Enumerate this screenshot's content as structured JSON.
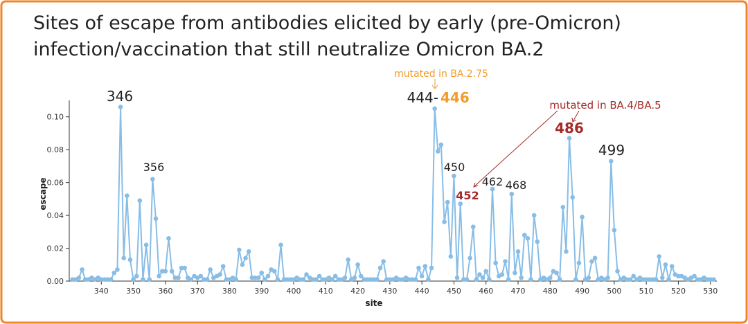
{
  "chart_data": {
    "type": "line",
    "title": [
      "Sites of escape from antibodies elicited by early (pre-Omicron)",
      "infection/vaccination that still neutralize Omicron BA.2"
    ],
    "x_label": "site",
    "y_label": "escape",
    "x": [
      331,
      332,
      333,
      334,
      335,
      336,
      337,
      338,
      339,
      340,
      341,
      342,
      343,
      344,
      345,
      346,
      347,
      348,
      349,
      350,
      351,
      352,
      353,
      354,
      355,
      356,
      357,
      358,
      359,
      360,
      361,
      362,
      363,
      364,
      365,
      366,
      367,
      368,
      369,
      370,
      371,
      372,
      373,
      374,
      375,
      376,
      377,
      378,
      379,
      380,
      381,
      382,
      383,
      384,
      385,
      386,
      387,
      388,
      389,
      390,
      391,
      392,
      393,
      394,
      395,
      396,
      397,
      398,
      399,
      400,
      401,
      402,
      403,
      404,
      405,
      406,
      407,
      408,
      409,
      410,
      411,
      412,
      413,
      414,
      415,
      416,
      417,
      418,
      419,
      420,
      421,
      422,
      423,
      424,
      425,
      426,
      427,
      428,
      429,
      430,
      431,
      432,
      433,
      434,
      435,
      436,
      437,
      438,
      439,
      440,
      441,
      442,
      443,
      444,
      445,
      446,
      447,
      448,
      449,
      450,
      451,
      452,
      453,
      454,
      455,
      456,
      457,
      458,
      459,
      460,
      461,
      462,
      463,
      464,
      465,
      466,
      467,
      468,
      469,
      470,
      471,
      472,
      473,
      474,
      475,
      476,
      477,
      478,
      479,
      480,
      481,
      482,
      483,
      484,
      485,
      486,
      487,
      488,
      489,
      490,
      491,
      492,
      493,
      494,
      495,
      496,
      497,
      498,
      499,
      500,
      501,
      502,
      503,
      504,
      505,
      506,
      507,
      508,
      509,
      510,
      511,
      512,
      513,
      514,
      515,
      516,
      517,
      518,
      519,
      520,
      521,
      522,
      523,
      524,
      525,
      526,
      527,
      528,
      529,
      530,
      531
    ],
    "series": [
      {
        "name": "escape",
        "color": "#88bde6",
        "values": [
          0.001,
          0.001,
          0.002,
          0.007,
          0.001,
          0.001,
          0.002,
          0.001,
          0.002,
          0.001,
          0.001,
          0.001,
          0.001,
          0.005,
          0.007,
          0.106,
          0.014,
          0.052,
          0.013,
          0.001,
          0.003,
          0.049,
          0.001,
          0.022,
          0.001,
          0.062,
          0.038,
          0.003,
          0.006,
          0.006,
          0.026,
          0.006,
          0.002,
          0.002,
          0.008,
          0.008,
          0.002,
          0.001,
          0.003,
          0.002,
          0.003,
          0.001,
          0.001,
          0.007,
          0.002,
          0.003,
          0.004,
          0.009,
          0.001,
          0.001,
          0.002,
          0.001,
          0.019,
          0.01,
          0.014,
          0.018,
          0.002,
          0.002,
          0.002,
          0.005,
          0.001,
          0.003,
          0.007,
          0.006,
          0.001,
          0.022,
          0.001,
          0.001,
          0.001,
          0.001,
          0.002,
          0.001,
          0.001,
          0.004,
          0.002,
          0.001,
          0.001,
          0.003,
          0.001,
          0.001,
          0.002,
          0.001,
          0.003,
          0.001,
          0.001,
          0.002,
          0.013,
          0.001,
          0.002,
          0.01,
          0.003,
          0.001,
          0.001,
          0.001,
          0.001,
          0.001,
          0.008,
          0.012,
          0.001,
          0.001,
          0.001,
          0.002,
          0.001,
          0.001,
          0.002,
          0.001,
          0.001,
          0.001,
          0.008,
          0.003,
          0.009,
          0.001,
          0.008,
          0.105,
          0.079,
          0.083,
          0.036,
          0.048,
          0.015,
          0.064,
          0.002,
          0.047,
          0.001,
          0.001,
          0.014,
          0.033,
          0.001,
          0.004,
          0.002,
          0.006,
          0.001,
          0.056,
          0.011,
          0.003,
          0.004,
          0.012,
          0.001,
          0.053,
          0.005,
          0.018,
          0.002,
          0.028,
          0.026,
          0.001,
          0.04,
          0.024,
          0.001,
          0.002,
          0.001,
          0.002,
          0.006,
          0.005,
          0.001,
          0.045,
          0.018,
          0.087,
          0.051,
          0.001,
          0.011,
          0.039,
          0.001,
          0.002,
          0.012,
          0.014,
          0.001,
          0.002,
          0.001,
          0.002,
          0.073,
          0.031,
          0.006,
          0.001,
          0.002,
          0.001,
          0.001,
          0.003,
          0.001,
          0.002,
          0.001,
          0.001,
          0.001,
          0.001,
          0.001,
          0.015,
          0.002,
          0.01,
          0.001,
          0.009,
          0.004,
          0.003,
          0.003,
          0.002,
          0.001,
          0.002,
          0.003,
          0.001,
          0.001,
          0.002,
          0.001,
          0.001,
          0.001
        ]
      }
    ],
    "xlim": [
      330,
      532
    ],
    "ylim": [
      0,
      0.11
    ],
    "xticks": [
      340,
      350,
      360,
      370,
      380,
      390,
      400,
      410,
      420,
      430,
      440,
      450,
      460,
      470,
      480,
      490,
      500,
      510,
      520,
      530
    ],
    "yticks": [
      {
        "value": 0,
        "label": "0.00"
      },
      {
        "value": 0.02,
        "label": "0.02"
      },
      {
        "value": 0.04,
        "label": "0.04"
      },
      {
        "value": 0.06,
        "label": "0.06"
      },
      {
        "value": 0.08,
        "label": "0.08"
      },
      {
        "value": 0.1,
        "label": "0.10"
      }
    ],
    "annotations": [
      "346",
      "356",
      "444-",
      "446",
      "450",
      "452",
      "462",
      "468",
      "486",
      "499",
      "mutated in BA.2.75",
      "mutated in BA.4/BA.5"
    ]
  }
}
